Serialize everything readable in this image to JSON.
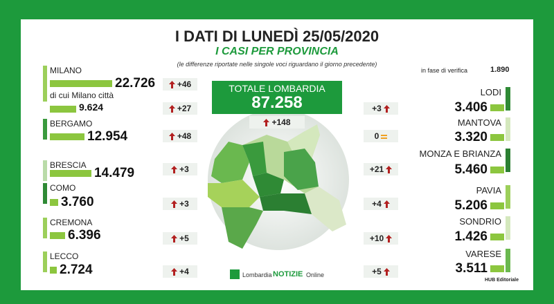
{
  "header": {
    "title": "I DATI DI LUNEDÌ 25/05/2020",
    "subtitle": "I CASI PER PROVINCIA",
    "note": "(le differenze riportate nelle singole voci riguardano il giorno precedente)",
    "verification_label": "in fase di verifica",
    "verification_value": "1.890"
  },
  "total": {
    "label": "TOTALE LOMBARDIA",
    "value": "87.258",
    "delta": "+148"
  },
  "left": [
    {
      "name": "MILANO",
      "value": "22.726",
      "delta": "+46"
    },
    {
      "name": "di cui Milano città",
      "value": "9.624",
      "delta": "+27"
    },
    {
      "name": "BERGAMO",
      "value": "12.954",
      "delta": "+48"
    },
    {
      "name": "BRESCIA",
      "value": "14.479",
      "delta": "+3"
    },
    {
      "name": "COMO",
      "value": "3.760",
      "delta": "+3"
    },
    {
      "name": "CREMONA",
      "value": "6.396",
      "delta": "+5"
    },
    {
      "name": "LECCO",
      "value": "2.724",
      "delta": "+4"
    }
  ],
  "right": [
    {
      "name": "LODI",
      "value": "3.406",
      "delta": "+3"
    },
    {
      "name": "MANTOVA",
      "value": "3.320",
      "delta": "0"
    },
    {
      "name": "MONZA E BRIANZA",
      "value": "5.460",
      "delta": "+21"
    },
    {
      "name": "PAVIA",
      "value": "5.206",
      "delta": "+4"
    },
    {
      "name": "SONDRIO",
      "value": "1.426",
      "delta": "+10"
    },
    {
      "name": "VARESE",
      "value": "3.511",
      "delta": "+5"
    }
  ],
  "footer": {
    "logo_a": "Lombardia",
    "logo_b": "NOTIZIE",
    "logo_c": "Online",
    "credit": "HUB Editoriale"
  }
}
